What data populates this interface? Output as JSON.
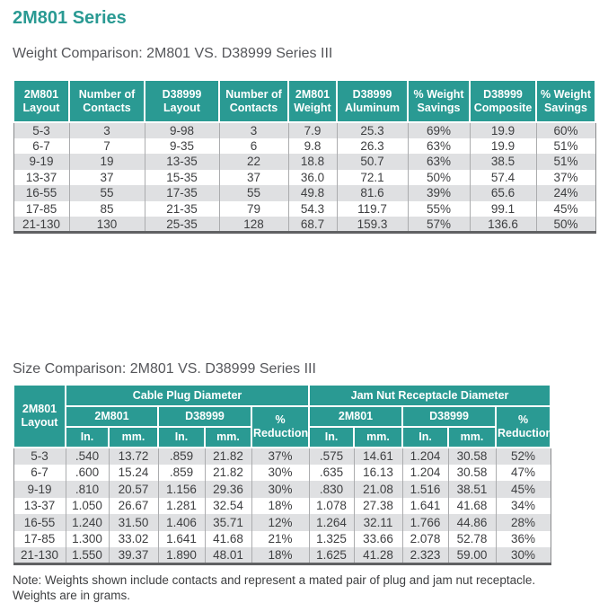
{
  "page": {
    "title": "2M801 Series",
    "note_line1": "Note: Weights shown include contacts and represent a mated pair of plug and jam nut receptacle.",
    "note_line2": "Weights are in grams."
  },
  "colors": {
    "accent_teal": "#2a9a93",
    "heading_gray": "#55565a",
    "row_stripe": "#dfe0e2",
    "body_text": "#3e3f41"
  },
  "weight_table": {
    "heading": "Weight Comparison: 2M801 VS. D38999 Series III",
    "columns": [
      "2M801 Layout",
      "Number of Contacts",
      "D38999 Layout",
      "Number of Contacts",
      "2M801 Weight",
      "D38999 Aluminum",
      "% Weight Savings",
      "D38999 Composite",
      "% Weight Savings"
    ],
    "rows": [
      [
        "5-3",
        "3",
        "9-98",
        "3",
        "7.9",
        "25.3",
        "69%",
        "19.9",
        "60%"
      ],
      [
        "6-7",
        "7",
        "9-35",
        "6",
        "9.8",
        "26.3",
        "63%",
        "19.9",
        "51%"
      ],
      [
        "9-19",
        "19",
        "13-35",
        "22",
        "18.8",
        "50.7",
        "63%",
        "38.5",
        "51%"
      ],
      [
        "13-37",
        "37",
        "15-35",
        "37",
        "36.0",
        "72.1",
        "50%",
        "57.4",
        "37%"
      ],
      [
        "16-55",
        "55",
        "17-35",
        "55",
        "49.8",
        "81.6",
        "39%",
        "65.6",
        "24%"
      ],
      [
        "17-85",
        "85",
        "21-35",
        "79",
        "54.3",
        "119.7",
        "55%",
        "99.1",
        "45%"
      ],
      [
        "21-130",
        "130",
        "25-35",
        "128",
        "68.7",
        "159.3",
        "57%",
        "136.6",
        "50%"
      ]
    ]
  },
  "size_table": {
    "heading": "Size Comparison: 2M801 VS. D38999 Series III",
    "header": {
      "layout": "2M801 Layout",
      "cable_plug_group": "Cable Plug Diameter",
      "jam_nut_group": "Jam Nut Receptacle Diameter",
      "sub_2m801": "2M801",
      "sub_d38999": "D38999",
      "pct_reduction": "% Reduction",
      "unit_in": "In.",
      "unit_mm": "mm."
    },
    "rows": [
      [
        "5-3",
        ".540",
        "13.72",
        ".859",
        "21.82",
        "37%",
        ".575",
        "14.61",
        "1.204",
        "30.58",
        "52%"
      ],
      [
        "6-7",
        ".600",
        "15.24",
        ".859",
        "21.82",
        "30%",
        ".635",
        "16.13",
        "1.204",
        "30.58",
        "47%"
      ],
      [
        "9-19",
        ".810",
        "20.57",
        "1.156",
        "29.36",
        "30%",
        ".830",
        "21.08",
        "1.516",
        "38.51",
        "45%"
      ],
      [
        "13-37",
        "1.050",
        "26.67",
        "1.281",
        "32.54",
        "18%",
        "1.078",
        "27.38",
        "1.641",
        "41.68",
        "34%"
      ],
      [
        "16-55",
        "1.240",
        "31.50",
        "1.406",
        "35.71",
        "12%",
        "1.264",
        "32.11",
        "1.766",
        "44.86",
        "28%"
      ],
      [
        "17-85",
        "1.300",
        "33.02",
        "1.641",
        "41.68",
        "21%",
        "1.325",
        "33.66",
        "2.078",
        "52.78",
        "36%"
      ],
      [
        "21-130",
        "1.550",
        "39.37",
        "1.890",
        "48.01",
        "18%",
        "1.625",
        "41.28",
        "2.323",
        "59.00",
        "30%"
      ]
    ]
  }
}
